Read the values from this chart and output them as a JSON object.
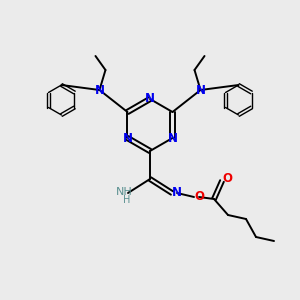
{
  "bg_color": "#ebebeb",
  "atom_colors": {
    "N": "#0000ee",
    "O": "#ee0000",
    "C": "#000000",
    "H": "#5a9090"
  },
  "bond_color": "#000000",
  "line_width": 1.4,
  "ring_r": 26,
  "ph_r": 15
}
